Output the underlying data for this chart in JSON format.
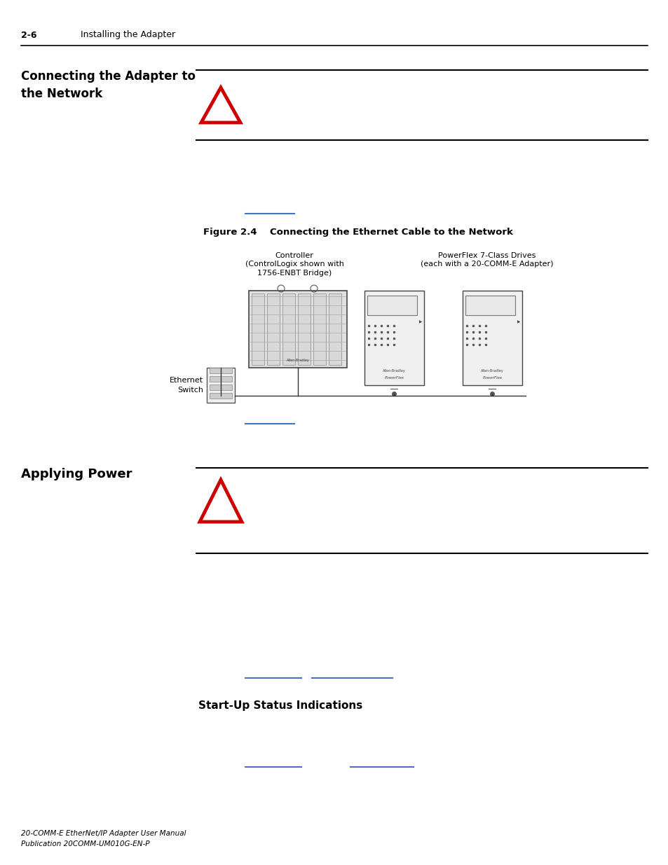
{
  "page_number": "2-6",
  "page_header": "Installing the Adapter",
  "bg_color": "#ffffff",
  "section1_title": "Connecting the Adapter to\nthe Network",
  "section2_title": "Applying Power",
  "section3_title": "Start-Up Status Indications",
  "figure_caption": "Figure 2.4    Connecting the Ethernet Cable to the Network",
  "controller_label": "Controller\n(ControlLogix shown with\n1756-ENBT Bridge)",
  "powerflex_label": "PowerFlex 7-Class Drives\n(each with a 20-COMM-E Adapter)",
  "ethernet_switch_label": "Ethernet\nSwitch",
  "footer_line1": "20-COMM-E EtherNet/IP Adapter User Manual",
  "footer_line2": "Publication 20COMM-UM010G-EN-P",
  "link_color": "#4472c4",
  "rule_color": "#000000",
  "triangle_color": "#cc0000",
  "text_color": "#000000"
}
